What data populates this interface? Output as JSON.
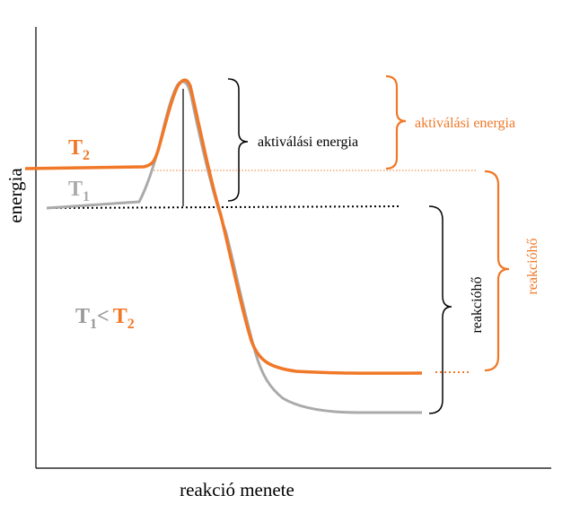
{
  "axes": {
    "y_label": "energia",
    "x_label": "reakció menete"
  },
  "curves": {
    "t2": {
      "name": "T",
      "subscript": "2"
    },
    "t1": {
      "name": "T",
      "subscript": "1"
    }
  },
  "labels": {
    "activation_black": "aktiválási energia",
    "activation_orange": "aktiválási energia",
    "reaction_heat_black": "reakcióhő",
    "reaction_heat_orange": "reakcióhő"
  },
  "comparison": {
    "t1": "T",
    "t1_sub": "1",
    "op": "<",
    "t2": "T",
    "t2_sub": "2"
  },
  "colors": {
    "orange": "#f07828",
    "gray": "#aaaaaa",
    "black": "#000000",
    "comparison_gray": "#999999"
  }
}
